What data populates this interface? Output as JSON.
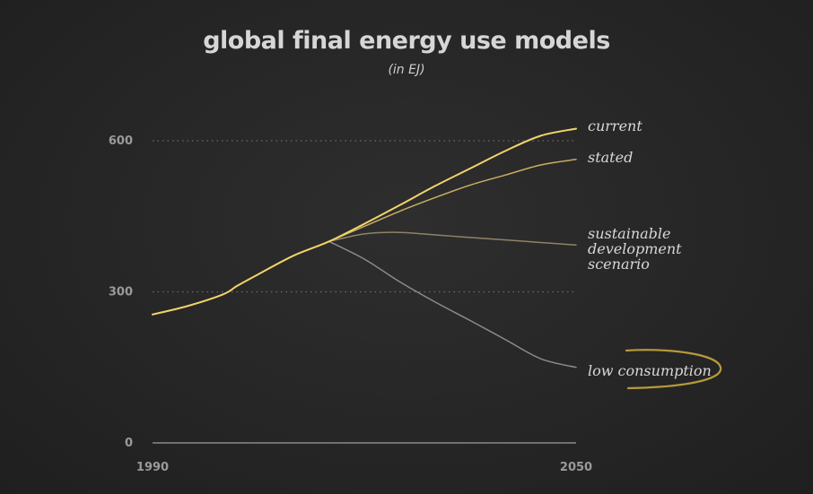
{
  "chart_data": {
    "type": "line",
    "title": "global final energy use models",
    "subtitle": "(in EJ)",
    "xlabel": "",
    "ylabel": "",
    "xlim": [
      1990,
      2050
    ],
    "ylim": [
      0,
      600
    ],
    "x_ticks": [
      "1990",
      "2050"
    ],
    "y_ticks": [
      "0",
      "300",
      "600"
    ],
    "grid": "dotted horizontal at 300 and 600",
    "series": [
      {
        "name": "current",
        "color": "#f2d46a",
        "x": [
          1990,
          1995,
          2000,
          2002,
          2005,
          2010,
          2015,
          2020,
          2025,
          2030,
          2035,
          2040,
          2045,
          2050
        ],
        "values": [
          255,
          272,
          295,
          312,
          335,
          372,
          400,
          435,
          472,
          510,
          545,
          580,
          610,
          624
        ]
      },
      {
        "name": "stated",
        "color": "#c9ae62",
        "x": [
          2015,
          2020,
          2025,
          2030,
          2035,
          2040,
          2045,
          2050
        ],
        "values": [
          400,
          430,
          460,
          487,
          512,
          532,
          552,
          563
        ]
      },
      {
        "name": "sustainable development scenario",
        "label_lines": [
          "sustainable",
          "development",
          "scenario"
        ],
        "color": "#8d8466",
        "x": [
          2015,
          2020,
          2025,
          2030,
          2035,
          2040,
          2045,
          2050
        ],
        "values": [
          400,
          415,
          418,
          413,
          408,
          403,
          398,
          393
        ]
      },
      {
        "name": "low consumption",
        "color": "#8b8b8b",
        "x": [
          2015,
          2020,
          2025,
          2030,
          2035,
          2040,
          2045,
          2050
        ],
        "values": [
          400,
          365,
          320,
          280,
          243,
          205,
          167,
          150
        ]
      }
    ]
  },
  "colors": {
    "background": "#262626",
    "text": "#d6d6d6",
    "tick": "#9a9a9a",
    "grid": "#6a6a6a",
    "highlight_swoosh": "#b89a3c"
  }
}
